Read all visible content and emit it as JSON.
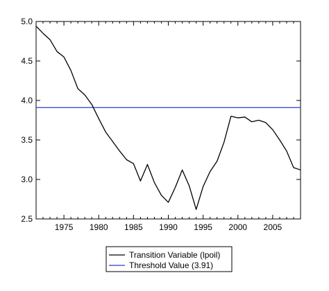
{
  "chart_data": {
    "type": "line",
    "title": "",
    "xlabel": "",
    "ylabel": "",
    "xlim": [
      1971,
      2009
    ],
    "ylim": [
      2.5,
      5.0
    ],
    "x_ticks": [
      1975,
      1980,
      1985,
      1990,
      1995,
      2000,
      2005
    ],
    "x_tick_labels": [
      "1975",
      "1980",
      "1985",
      "1990",
      "1995",
      "2000",
      "2005"
    ],
    "y_ticks": [
      2.5,
      3.0,
      3.5,
      4.0,
      4.5,
      5.0
    ],
    "y_tick_labels": [
      "2.5",
      "3.0",
      "3.5",
      "4.0",
      "4.5",
      "5.0"
    ],
    "grid": false,
    "legend_position": "bottom-center",
    "series": [
      {
        "name": "Transition Variable (lpoil)",
        "color": "#000000",
        "x": [
          1971,
          1972,
          1973,
          1974,
          1975,
          1976,
          1977,
          1978,
          1979,
          1980,
          1981,
          1982,
          1983,
          1984,
          1985,
          1986,
          1987,
          1988,
          1989,
          1990,
          1991,
          1992,
          1993,
          1994,
          1995,
          1996,
          1997,
          1998,
          1999,
          2000,
          2001,
          2002,
          2003,
          2004,
          2005,
          2006,
          2007,
          2008,
          2009
        ],
        "values": [
          4.94,
          4.85,
          4.77,
          4.62,
          4.55,
          4.38,
          4.15,
          4.07,
          3.95,
          3.77,
          3.6,
          3.48,
          3.36,
          3.25,
          3.2,
          2.98,
          3.19,
          2.96,
          2.8,
          2.71,
          2.9,
          3.12,
          2.92,
          2.62,
          2.91,
          3.1,
          3.23,
          3.47,
          3.8,
          3.78,
          3.79,
          3.73,
          3.75,
          3.72,
          3.63,
          3.5,
          3.36,
          3.15,
          3.12
        ]
      },
      {
        "name": "Threshold Value (3.91)",
        "color": "#2a3fc8",
        "x": [
          1971,
          2009
        ],
        "values": [
          3.91,
          3.91
        ]
      }
    ]
  }
}
